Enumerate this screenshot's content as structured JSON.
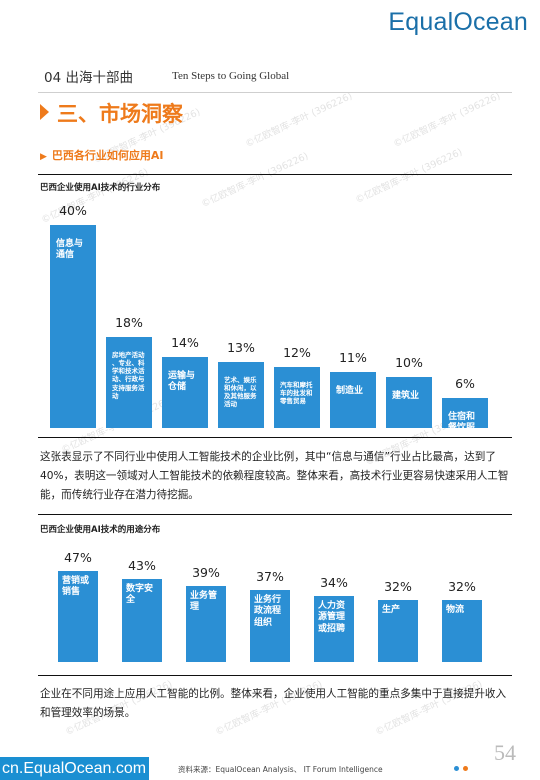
{
  "logo": "EqualOcean",
  "header": {
    "section_num": "04 出海十部曲",
    "section_en": "Ten Steps to Going Global"
  },
  "main_title": "三、市场洞察",
  "sub_title": "巴西各行业如何应用AI",
  "watermark": "©亿欧智库-李叶 (396226)",
  "chart1": {
    "title": "巴西企业使用AI技术的行业分布",
    "chart_data": {
      "type": "bar",
      "categories": [
        "信息与通信",
        "房地产活动、专业、科学和技术活动、行政与支持服务活动",
        "运输与仓储",
        "艺术、娱乐和休闲，以及其他服务活动",
        "汽车和摩托车的批发和零售贸易",
        "制造业",
        "建筑业",
        "住宿和餐饮服务活"
      ],
      "values": [
        40,
        18,
        14,
        13,
        12,
        11,
        10,
        6
      ],
      "labels": [
        "40%",
        "18%",
        "14%",
        "13%",
        "12%",
        "11%",
        "10%",
        "6%"
      ]
    }
  },
  "para1": "这张表显示了不同行业中使用人工智能技术的企业比例，其中“信息与通信”行业占比最高，达到了40%，表明这一领域对人工智能技术的依赖程度较高。整体来看，高技术行业更容易快速采用人工智能，而传统行业存在潜力待挖掘。",
  "chart2": {
    "title": "巴西企业使用AI技术的用途分布",
    "chart_data": {
      "type": "bar",
      "categories": [
        "营销或销售",
        "数字安全",
        "业务管理",
        "业务行政流程组织",
        "人力资源管理或招聘",
        "生产",
        "物流"
      ],
      "values": [
        47,
        43,
        39,
        37,
        34,
        32,
        32
      ],
      "labels": [
        "47%",
        "43%",
        "39%",
        "37%",
        "34%",
        "32%",
        "32%"
      ]
    }
  },
  "para2": "企业在不同用途上应用人工智能的比例。整体来看，企业使用人工智能的重点多集中于直接提升收入和管理效率的场景。",
  "footer": {
    "brand": "cn.EqualOcean.com",
    "source": "资料来源：EqualOcean Analysis、 IT Forum Intelligence",
    "page": "54"
  },
  "colors": {
    "accent": "#ee7a1b",
    "bar": "#2b8fd4",
    "brand": "#1a8fd2"
  }
}
